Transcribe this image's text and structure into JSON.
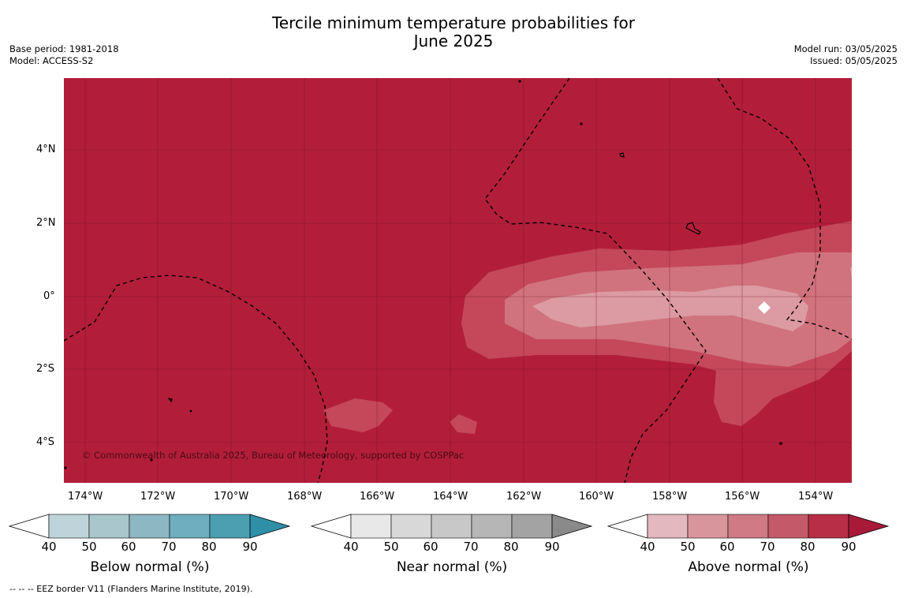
{
  "title_line1": "Tercile minimum temperature probabilities for",
  "title_line2": "June 2025",
  "meta_left": {
    "base_period": "Base period: 1981-2018",
    "model": "Model: ACCESS-S2"
  },
  "meta_right": {
    "model_run": "Model run: 03/05/2025",
    "issued": "Issued: 05/05/2025"
  },
  "map": {
    "x_ticks": [
      "174°W",
      "172°W",
      "170°W",
      "168°W",
      "166°W",
      "164°W",
      "162°W",
      "160°W",
      "158°W",
      "156°W",
      "154°W"
    ],
    "y_ticks": [
      "4°N",
      "2°N",
      "0°",
      "2°S",
      "4°S"
    ],
    "copyright": "© Commonwealth of Australia 2025, Bureau of Meteorology, supported by COSPPac",
    "colors": {
      "above_80_90": "#b21e3a",
      "above_70_80": "#c4485a",
      "above_60_70": "#d0737e",
      "above_50_60": "#dc9aa2"
    }
  },
  "legends": [
    {
      "title": "Below normal (%)",
      "ticks": [
        "40",
        "50",
        "60",
        "70",
        "80",
        "90"
      ],
      "colors": [
        "#bfd3da",
        "#a8c6cc",
        "#8cb7c3",
        "#6eaebe",
        "#4b9fb1",
        "#2e8fa6"
      ]
    },
    {
      "title": "Near normal (%)",
      "ticks": [
        "40",
        "50",
        "60",
        "70",
        "80",
        "90"
      ],
      "colors": [
        "#e8e8e8",
        "#d8d8d8",
        "#c8c8c8",
        "#b6b6b6",
        "#a3a3a3",
        "#8a8a8a"
      ]
    },
    {
      "title": "Above normal (%)",
      "ticks": [
        "40",
        "50",
        "60",
        "70",
        "80",
        "90"
      ],
      "colors": [
        "#e3b8be",
        "#d9959c",
        "#cf7a84",
        "#c45a69",
        "#b72e46",
        "#a81a38"
      ]
    }
  ],
  "footer": "--  --  -- EEZ border V11 (Flanders Marine Institute, 2019)."
}
